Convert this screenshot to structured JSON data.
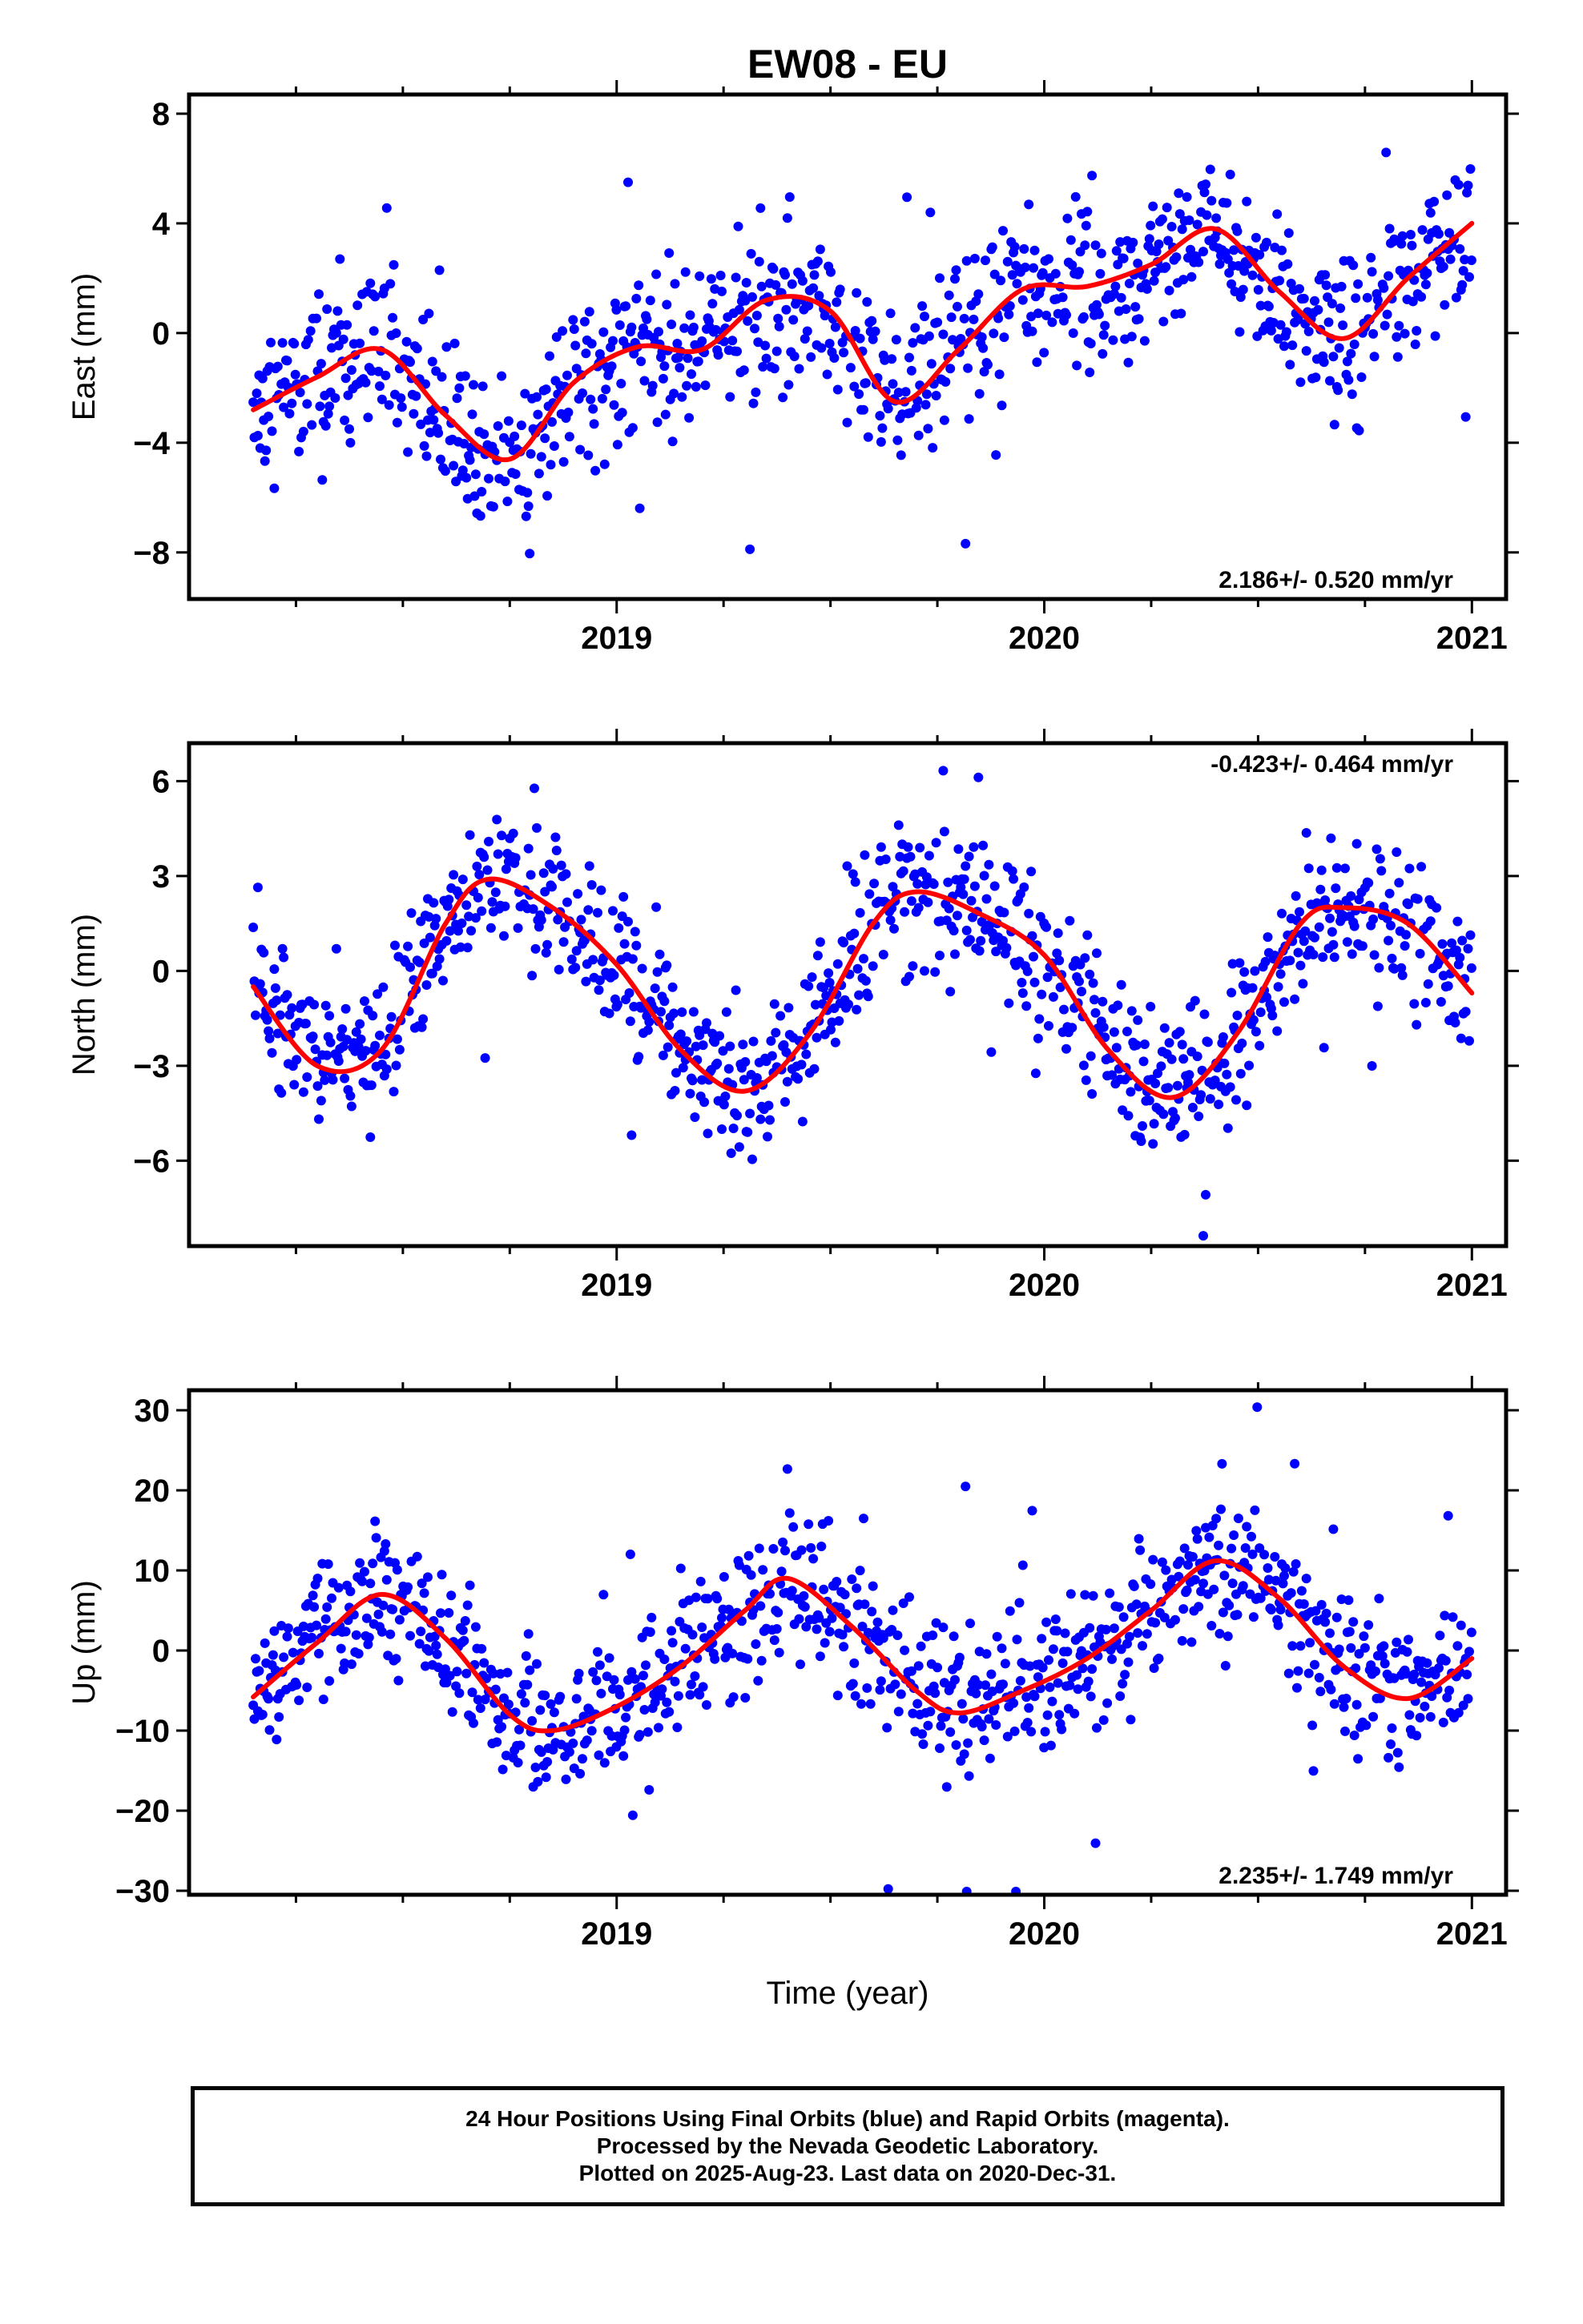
{
  "title": "EW08 - EU",
  "colors": {
    "data": "#0000ff",
    "fit": "#ff0000",
    "frame": "#000000"
  },
  "chart_data": [
    {
      "type": "scatter",
      "name": "east",
      "ylabel": "East (mm)",
      "xlabel": "",
      "xlim": [
        2018.0,
        2021.08
      ],
      "ylim": [
        -9.7,
        8.7
      ],
      "yticks": [
        -8,
        -4,
        0,
        4,
        8
      ],
      "ytick_labels": [
        "−8",
        "−4",
        "0",
        "4",
        "8"
      ],
      "xticks": [
        2019,
        2020,
        2021
      ],
      "xtick_labels": [
        "2019",
        "2020",
        "2021"
      ],
      "rate_label": "2.186+/- 0.520 mm/yr",
      "rate_position": "bottom-right",
      "series": [
        {
          "style": "dots",
          "trend": 2.19,
          "annual_amp": 1.6,
          "semi_amp": 0.5,
          "phase": 2.4,
          "scatter": 1.5,
          "outliers": 0.02
        },
        {
          "style": "line",
          "fit_x": [
            2018.15,
            2018.3,
            2018.45,
            2018.6,
            2018.75,
            2018.9,
            2019.05,
            2019.2,
            2019.35,
            2019.5,
            2019.65,
            2019.8,
            2019.95,
            2020.1,
            2020.25,
            2020.4,
            2020.55,
            2020.7,
            2020.85,
            2021.0
          ],
          "fit_y": [
            -2.8,
            -1.6,
            -0.6,
            -3.0,
            -4.6,
            -1.8,
            -0.5,
            -0.6,
            1.2,
            0.8,
            -2.5,
            -0.6,
            1.6,
            1.7,
            2.5,
            3.8,
            1.5,
            -0.2,
            2.0,
            4.0
          ]
        }
      ]
    },
    {
      "type": "scatter",
      "name": "north",
      "ylabel": "North (mm)",
      "xlabel": "",
      "xlim": [
        2018.0,
        2021.08
      ],
      "ylim": [
        -8.7,
        7.2
      ],
      "yticks": [
        -6,
        -3,
        0,
        3,
        6
      ],
      "ytick_labels": [
        "−6",
        "−3",
        "0",
        "3",
        "6"
      ],
      "xticks": [
        2019,
        2020,
        2021
      ],
      "xtick_labels": [
        "2019",
        "2020",
        "2021"
      ],
      "rate_label": "-0.423+/- 0.464 mm/yr",
      "rate_position": "top-right",
      "series": [
        {
          "style": "dots",
          "trend": -0.42,
          "annual_amp": 3.1,
          "semi_amp": 0.0,
          "phase": -0.4,
          "scatter": 1.1,
          "outliers": 0.02
        },
        {
          "style": "line",
          "fit_x": [
            2018.15,
            2018.3,
            2018.45,
            2018.6,
            2018.7,
            2018.85,
            2019.0,
            2019.15,
            2019.3,
            2019.45,
            2019.6,
            2019.7,
            2019.85,
            2020.0,
            2020.15,
            2020.3,
            2020.45,
            2020.6,
            2020.7,
            2020.85,
            2021.0
          ],
          "fit_y": [
            -0.5,
            -3.0,
            -2.5,
            1.5,
            2.9,
            2.0,
            0.2,
            -2.5,
            -3.8,
            -2.0,
            1.5,
            2.5,
            1.8,
            0.5,
            -2.5,
            -4.0,
            -2.0,
            1.5,
            2.0,
            1.5,
            -0.7
          ]
        }
      ]
    },
    {
      "type": "scatter",
      "name": "up",
      "ylabel": "Up (mm)",
      "xlabel": "Time (year)",
      "xlim": [
        2018.0,
        2021.08
      ],
      "ylim": [
        -30.5,
        32.5
      ],
      "yticks": [
        -30,
        -20,
        -10,
        0,
        10,
        20,
        30
      ],
      "ytick_labels": [
        "−30",
        "−20",
        "−10",
        "0",
        "10",
        "20",
        "30"
      ],
      "xticks": [
        2019,
        2020,
        2021
      ],
      "xtick_labels": [
        "2019",
        "2020",
        "2021"
      ],
      "rate_label": "2.235+/- 1.749 mm/yr",
      "rate_position": "bottom-right",
      "series": [
        {
          "style": "dots",
          "trend": 2.24,
          "annual_amp": 9.0,
          "semi_amp": 0.0,
          "phase": 0.0,
          "scatter": 4.5,
          "outliers": 0.02
        },
        {
          "style": "line",
          "fit_x": [
            2018.15,
            2018.3,
            2018.45,
            2018.6,
            2018.75,
            2018.85,
            2019.0,
            2019.15,
            2019.3,
            2019.4,
            2019.55,
            2019.7,
            2019.8,
            2019.95,
            2020.1,
            2020.25,
            2020.4,
            2020.55,
            2020.7,
            2020.85,
            2021.0
          ],
          "fit_y": [
            -5.8,
            1.0,
            7.0,
            1.5,
            -8.0,
            -10.0,
            -7.0,
            -2.0,
            5.0,
            9.0,
            3.0,
            -5.0,
            -7.8,
            -5.0,
            -1.0,
            5.0,
            11.2,
            6.5,
            -2.0,
            -6.0,
            -1.0
          ]
        }
      ]
    }
  ],
  "footer": {
    "line1": "24 Hour Positions Using Final Orbits (blue) and Rapid Orbits (magenta).",
    "line2": "Processed by the Nevada Geodetic Laboratory.",
    "line3": "Plotted on 2025-Aug-23. Last data on 2020-Dec-31."
  }
}
